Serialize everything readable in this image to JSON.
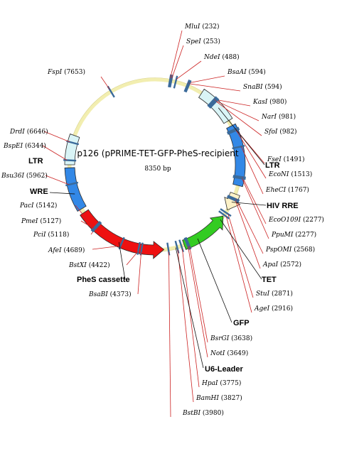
{
  "plasmid": {
    "name": "p126 (pPRIME-TET-GFP-PheS-recipient",
    "size_label": "8350 bp",
    "length": 8350
  },
  "colors": {
    "backbone": "#f2eeb0",
    "ltr": "#d9f4f6",
    "blue": "#3388e6",
    "hiv_rre": "#fdf2c8",
    "gfp": "#33cc22",
    "phes": "#ee1111",
    "site_line": "#cc2222",
    "tick": "#3a6a9a"
  },
  "restriction_sites": [
    {
      "name": "MluI",
      "pos": "(232)"
    },
    {
      "name": "SpeI",
      "pos": "(253)"
    },
    {
      "name": "NdeI",
      "pos": "(488)"
    },
    {
      "name": "BsaAI",
      "pos": "(594)"
    },
    {
      "name": "SnaBI",
      "pos": "(594)"
    },
    {
      "name": "KasI",
      "pos": "(980)"
    },
    {
      "name": "NarI",
      "pos": "(981)"
    },
    {
      "name": "SfoI",
      "pos": "(982)"
    },
    {
      "name": "FseI",
      "pos": "(1491)"
    },
    {
      "name": "EcoNI",
      "pos": "(1513)"
    },
    {
      "name": "EheCI",
      "pos": "(1767)"
    },
    {
      "name": "EcoO109I",
      "pos": "(2277)"
    },
    {
      "name": "PpuMI",
      "pos": "(2277)"
    },
    {
      "name": "PspOMI",
      "pos": "(2568)"
    },
    {
      "name": "ApaI",
      "pos": "(2572)"
    },
    {
      "name": "StuI",
      "pos": "(2871)"
    },
    {
      "name": "AgeI",
      "pos": "(2916)"
    },
    {
      "name": "BsrGI",
      "pos": "(3638)"
    },
    {
      "name": "NotI",
      "pos": "(3649)"
    },
    {
      "name": "HpaI",
      "pos": "(3775)"
    },
    {
      "name": "BamHI",
      "pos": "(3827)"
    },
    {
      "name": "BstBI",
      "pos": "(3980)"
    },
    {
      "name": "BsaBI",
      "pos": "(4373)"
    },
    {
      "name": "BstXI",
      "pos": "(4422)"
    },
    {
      "name": "AfeI",
      "pos": "(4689)"
    },
    {
      "name": "PciI",
      "pos": "(5118)"
    },
    {
      "name": "PmeI",
      "pos": "(5127)"
    },
    {
      "name": "PacI",
      "pos": "(5142)"
    },
    {
      "name": "Bsu36I",
      "pos": "(5962)"
    },
    {
      "name": "BspEI",
      "pos": "(6344)"
    },
    {
      "name": "DrdI",
      "pos": "(6646)"
    },
    {
      "name": "FspI",
      "pos": "(7653)"
    }
  ],
  "features": [
    {
      "label": "LTR"
    },
    {
      "label": "HIV RRE"
    },
    {
      "label": "TET"
    },
    {
      "label": "GFP"
    },
    {
      "label": "U6-Leader"
    },
    {
      "label": "PheS cassette"
    },
    {
      "label": "WRE"
    },
    {
      "label": "LTR"
    }
  ]
}
